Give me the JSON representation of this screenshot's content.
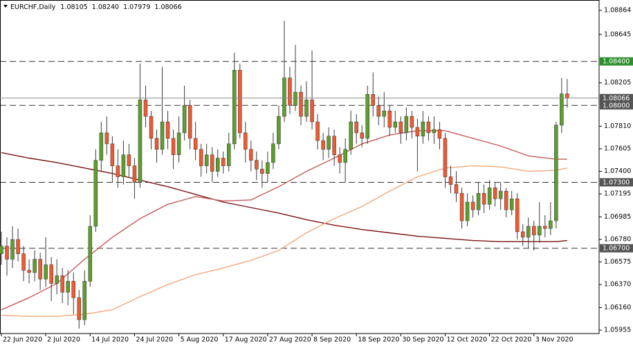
{
  "chart_data": {
    "type": "candlestick",
    "symbol": "EURCHF,Daily",
    "last_bar_labels": {
      "open": "1.08105",
      "high": "1.08240",
      "low": "1.07979",
      "close": "1.08066"
    },
    "categories": [
      "22 Jun 2020",
      null,
      null,
      null,
      null,
      null,
      null,
      null,
      "2 Jul 2020",
      null,
      null,
      null,
      null,
      null,
      null,
      null,
      "14 Jul 2020",
      null,
      null,
      null,
      null,
      null,
      null,
      null,
      "24 Jul 2020",
      null,
      null,
      null,
      null,
      null,
      null,
      null,
      "5 Aug 2020",
      null,
      null,
      null,
      null,
      null,
      null,
      null,
      "17 Aug 2020",
      null,
      null,
      null,
      null,
      null,
      null,
      null,
      "27 Aug 2020",
      null,
      null,
      null,
      null,
      null,
      null,
      null,
      "8 Sep 2020",
      null,
      null,
      null,
      null,
      null,
      null,
      null,
      "18 Sep 2020",
      null,
      null,
      null,
      null,
      null,
      null,
      null,
      "30 Sep 2020",
      null,
      null,
      null,
      null,
      null,
      null,
      null,
      "12 Oct 2020",
      null,
      null,
      null,
      null,
      null,
      null,
      null,
      "22 Oct 2020",
      null,
      null,
      null,
      null,
      null,
      null,
      null,
      "3 Nov 2020",
      null,
      null,
      null,
      null,
      null,
      null
    ],
    "open": [
      1.0665,
      1.0672,
      1.066,
      1.0678,
      1.0665,
      1.065,
      1.0648,
      1.066,
      1.0642,
      1.0655,
      1.0638,
      1.0645,
      1.063,
      1.064,
      1.0625,
      1.0605,
      1.064,
      1.069,
      1.075,
      1.0775,
      1.0765,
      1.0745,
      1.0735,
      1.0755,
      1.0745,
      1.073,
      1.0805,
      1.079,
      1.077,
      1.076,
      1.0785,
      1.077,
      1.0755,
      1.0775,
      1.08,
      1.077,
      1.076,
      1.0745,
      1.0755,
      1.074,
      1.0752,
      1.0745,
      1.0765,
      1.0832,
      1.0775,
      1.076,
      1.075,
      1.0742,
      1.0738,
      1.0748,
      1.0765,
      1.079,
      1.0825,
      1.08,
      1.0812,
      1.079,
      1.0805,
      1.0785,
      1.0768,
      1.076,
      1.0772,
      1.0755,
      1.0748,
      1.076,
      1.0785,
      1.0775,
      1.077,
      1.081,
      1.08,
      1.079,
      1.0795,
      1.078,
      1.0785,
      1.0775,
      1.079,
      1.078,
      1.0772,
      1.0785,
      1.0775,
      1.0778,
      1.077,
      1.0735,
      1.0728,
      1.072,
      1.0695,
      1.0712,
      1.0705,
      1.072,
      1.071,
      1.0725,
      1.0715,
      1.0722,
      1.0705,
      1.0715,
      1.0685,
      1.068,
      1.069,
      1.0682,
      1.069,
      1.0688,
      1.0695,
      1.0782,
      1.08105
    ],
    "high": [
      1.0685,
      1.068,
      1.069,
      1.0688,
      1.0672,
      1.066,
      1.0668,
      1.0666,
      1.068,
      1.0662,
      1.066,
      1.0652,
      1.065,
      1.0648,
      1.0632,
      1.065,
      1.07,
      1.076,
      1.0785,
      1.079,
      1.0772,
      1.076,
      1.0768,
      1.0765,
      1.0752,
      1.0838,
      1.0818,
      1.0795,
      1.0778,
      1.0835,
      1.0795,
      1.0778,
      1.079,
      1.0818,
      1.0805,
      1.0785,
      1.0765,
      1.0765,
      1.0762,
      1.076,
      1.0758,
      1.0775,
      1.0848,
      1.0838,
      1.0785,
      1.0768,
      1.0758,
      1.075,
      1.0758,
      1.0775,
      1.08,
      1.0877,
      1.0835,
      1.0855,
      1.0818,
      1.0822,
      1.085,
      1.0792,
      1.0775,
      1.078,
      1.0778,
      1.0762,
      1.077,
      1.0795,
      1.0792,
      1.0782,
      1.0818,
      1.083,
      1.0808,
      1.0812,
      1.08,
      1.0795,
      1.079,
      1.0798,
      1.0795,
      1.0788,
      1.0795,
      1.079,
      1.079,
      1.0785,
      1.0775,
      1.0745,
      1.074,
      1.0725,
      1.072,
      1.0718,
      1.073,
      1.0728,
      1.0732,
      1.073,
      1.073,
      1.0725,
      1.0722,
      1.072,
      1.0692,
      1.0698,
      1.0695,
      1.0712,
      1.07,
      1.0712,
      1.0785,
      1.0825,
      1.0824
    ],
    "low": [
      1.0655,
      1.0645,
      1.0652,
      1.0658,
      1.064,
      1.0638,
      1.064,
      1.0632,
      1.0635,
      1.0622,
      1.0628,
      1.062,
      1.0618,
      1.061,
      1.0597,
      1.06,
      1.0635,
      1.0685,
      1.074,
      1.0755,
      1.073,
      1.0725,
      1.0728,
      1.0735,
      1.0715,
      1.0725,
      1.078,
      1.076,
      1.0748,
      1.0755,
      1.076,
      1.0742,
      1.0748,
      1.0768,
      1.076,
      1.075,
      1.0735,
      1.0738,
      1.073,
      1.0735,
      1.0738,
      1.074,
      1.076,
      1.077,
      1.0748,
      1.074,
      1.0732,
      1.0725,
      1.073,
      1.0742,
      1.076,
      1.0785,
      1.0792,
      1.0795,
      1.0782,
      1.0785,
      1.0778,
      1.076,
      1.075,
      1.0752,
      1.0745,
      1.0738,
      1.073,
      1.0755,
      1.0765,
      1.0762,
      1.0765,
      1.079,
      1.0782,
      1.078,
      1.0772,
      1.0775,
      1.0765,
      1.0768,
      1.077,
      1.074,
      1.0765,
      1.0768,
      1.0765,
      1.076,
      1.0725,
      1.072,
      1.0712,
      1.0688,
      1.069,
      1.0698,
      1.07,
      1.0702,
      1.0705,
      1.0708,
      1.0705,
      1.0698,
      1.07,
      1.0678,
      1.0672,
      1.067,
      1.0668,
      1.0675,
      1.068,
      1.0682,
      1.0688,
      1.0775,
      1.07979
    ],
    "close": [
      1.0672,
      1.066,
      1.0678,
      1.0665,
      1.065,
      1.0648,
      1.066,
      1.0642,
      1.0655,
      1.0638,
      1.0645,
      1.063,
      1.064,
      1.0625,
      1.0605,
      1.064,
      1.069,
      1.075,
      1.0775,
      1.0765,
      1.0745,
      1.0735,
      1.0755,
      1.0745,
      1.073,
      1.0805,
      1.079,
      1.077,
      1.076,
      1.0785,
      1.077,
      1.0755,
      1.0775,
      1.08,
      1.077,
      1.076,
      1.0745,
      1.0755,
      1.074,
      1.0752,
      1.0745,
      1.0765,
      1.0832,
      1.0775,
      1.076,
      1.075,
      1.0742,
      1.0738,
      1.0748,
      1.0765,
      1.079,
      1.0825,
      1.08,
      1.0812,
      1.079,
      1.0805,
      1.0785,
      1.0768,
      1.076,
      1.0772,
      1.0755,
      1.0748,
      1.076,
      1.0785,
      1.0775,
      1.077,
      1.081,
      1.08,
      1.079,
      1.0795,
      1.078,
      1.0785,
      1.0775,
      1.079,
      1.078,
      1.0772,
      1.0785,
      1.0775,
      1.0778,
      1.077,
      1.0735,
      1.0728,
      1.072,
      1.0695,
      1.0712,
      1.0705,
      1.072,
      1.071,
      1.0725,
      1.0715,
      1.0722,
      1.0705,
      1.0715,
      1.0685,
      1.068,
      1.069,
      1.0682,
      1.069,
      1.0688,
      1.0695,
      1.0782,
      1.08105,
      1.08066
    ],
    "up_color": "#5d9e2f",
    "down_color": "#ee5a32",
    "series": [
      {
        "color": "#7a1212",
        "x": [
          0,
          5,
          10,
          15,
          20,
          25,
          30,
          35,
          40,
          45,
          50,
          55,
          60,
          65,
          70,
          75,
          80,
          85,
          90,
          95,
          100,
          102
        ],
        "values": [
          1.0757,
          1.0752,
          1.0748,
          1.0743,
          1.0738,
          1.0732,
          1.0726,
          1.0719,
          1.0712,
          1.0707,
          1.0702,
          1.0696,
          1.0691,
          1.0687,
          1.0684,
          1.0681,
          1.0679,
          1.0677,
          1.0676,
          1.0676,
          1.0676,
          1.0677
        ]
      },
      {
        "color": "#c45a5a",
        "x": [
          0,
          5,
          10,
          15,
          20,
          25,
          30,
          35,
          40,
          45,
          50,
          55,
          60,
          65,
          70,
          75,
          80,
          85,
          90,
          95,
          100,
          102
        ],
        "values": [
          1.0614,
          1.0625,
          1.0638,
          1.066,
          1.068,
          1.0697,
          1.071,
          1.0717,
          1.0713,
          1.0714,
          1.0726,
          1.074,
          1.0752,
          1.0765,
          1.0773,
          1.0777,
          1.0777,
          1.077,
          1.0763,
          1.0754,
          1.0751,
          1.0751
        ]
      },
      {
        "color": "#f4a77a",
        "x": [
          0,
          5,
          10,
          15,
          20,
          25,
          30,
          35,
          40,
          45,
          50,
          55,
          60,
          65,
          70,
          75,
          80,
          85,
          90,
          95,
          100,
          102
        ],
        "values": [
          1.0609,
          1.0608,
          1.0608,
          1.061,
          1.0614,
          1.0626,
          1.0637,
          1.0646,
          1.0652,
          1.0659,
          1.0668,
          1.0684,
          1.0697,
          1.0708,
          1.0722,
          1.0735,
          1.0743,
          1.0745,
          1.0744,
          1.074,
          1.0741,
          1.0743
        ]
      }
    ],
    "levels": [
      {
        "value": 1.084,
        "label": "1.08400",
        "color": "#2f8f2f"
      },
      {
        "value": 1.08,
        "label": "1.08000",
        "color": "#555555"
      },
      {
        "value": 1.073,
        "label": "1.07300",
        "color": "#555555"
      },
      {
        "value": 1.067,
        "label": "1.06700",
        "color": "#555555"
      }
    ],
    "price_line_color": "#555555",
    "xlim": [
      -0.25,
      107.75
    ],
    "ylim": [
      1.05924,
      1.08946
    ],
    "yticks": [
      1.08864,
      1.08645,
      1.08205,
      {
        "value": 1.0781,
        "label": "1.07810"
      },
      1.07605,
      {
        "value": 1.074,
        "label": "1.07400"
      },
      1.07195,
      1.06985,
      {
        "value": 1.0678,
        "label": "1.06780"
      },
      1.06575,
      {
        "value": 1.0637,
        "label": "1.06370"
      },
      {
        "value": 1.0616,
        "label": "1.06160"
      },
      1.05955
    ]
  }
}
